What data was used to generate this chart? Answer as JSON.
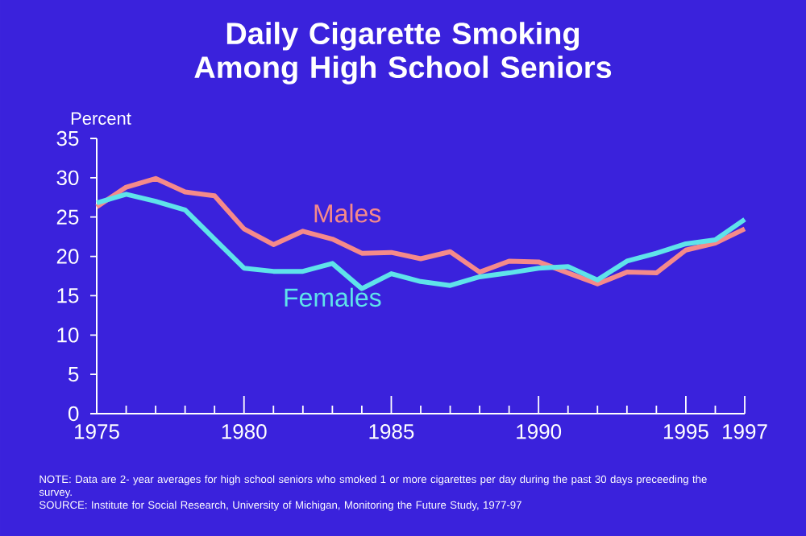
{
  "chart_data": {
    "type": "line",
    "title": "Daily Cigarette Smoking Among High School Seniors",
    "ylabel": "Percent",
    "x": [
      1975,
      1976,
      1977,
      1978,
      1979,
      1980,
      1981,
      1982,
      1983,
      1984,
      1985,
      1986,
      1987,
      1988,
      1989,
      1990,
      1991,
      1992,
      1993,
      1994,
      1995,
      1996,
      1997
    ],
    "series": [
      {
        "name": "Males",
        "color": "#f58a8a",
        "values": [
          26.3,
          28.8,
          29.9,
          28.2,
          27.7,
          23.5,
          21.5,
          23.2,
          22.2,
          20.4,
          20.5,
          19.7,
          20.6,
          18.0,
          19.4,
          19.3,
          17.9,
          16.5,
          18.0,
          17.9,
          20.8,
          21.7,
          23.5
        ]
      },
      {
        "name": "Females",
        "color": "#5fe3ea",
        "values": [
          26.8,
          27.9,
          27.0,
          25.9,
          22.2,
          18.5,
          18.1,
          18.1,
          19.1,
          15.9,
          17.8,
          16.8,
          16.3,
          17.4,
          17.9,
          18.5,
          18.7,
          17.0,
          19.4,
          20.4,
          21.6,
          22.1,
          24.7
        ]
      }
    ],
    "xlim": [
      1975,
      1997
    ],
    "xticks": [
      1975,
      {
        "value": 1976,
        "label": null
      },
      {
        "value": 1977,
        "label": null
      },
      {
        "value": 1978,
        "label": null
      },
      {
        "value": 1979,
        "label": null
      },
      1980,
      {
        "value": 1981,
        "label": null
      },
      {
        "value": 1982,
        "label": null
      },
      {
        "value": 1983,
        "label": null
      },
      {
        "value": 1984,
        "label": null
      },
      1985,
      {
        "value": 1986,
        "label": null
      },
      {
        "value": 1987,
        "label": null
      },
      {
        "value": 1988,
        "label": null
      },
      {
        "value": 1989,
        "label": null
      },
      1990,
      {
        "value": 1991,
        "label": null
      },
      {
        "value": 1992,
        "label": null
      },
      {
        "value": 1993,
        "label": null
      },
      {
        "value": 1994,
        "label": null
      },
      1995,
      {
        "value": 1996,
        "label": null
      },
      1997
    ],
    "ylim": [
      0,
      35
    ],
    "yticks": [
      0,
      5,
      10,
      15,
      20,
      25,
      30,
      35
    ],
    "grid": false,
    "legend": false,
    "marker": "none",
    "line_style": "solid",
    "annotations": [
      "NOTE: Data are 2- year averages for high school seniors who smoked 1 or more cigarettes per day during the past 30 days preceeding the survey.",
      "SOURCE: Institute for Social Research, University of Michigan, Monitoring the Future Study, 1977-97"
    ]
  }
}
